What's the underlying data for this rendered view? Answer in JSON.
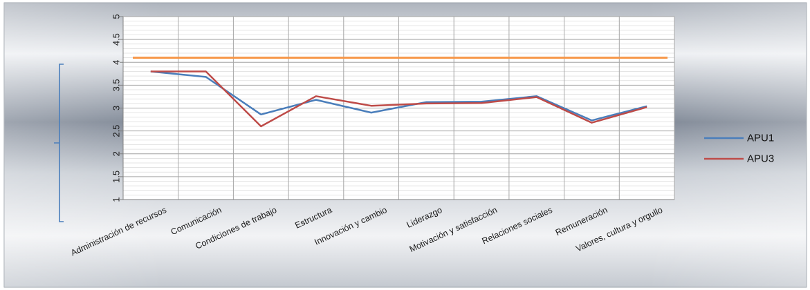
{
  "chart_data": {
    "type": "line",
    "title": "",
    "xlabel": "",
    "ylabel": "",
    "categories": [
      "Administración de recursos",
      "Comunicación",
      "Condiciones de trabajo",
      "Estructura",
      "Innovación y cambio",
      "Liderazgo",
      "Motivación y satisfacción",
      "Relaciones sociales",
      "Remuneración",
      "Valores, cultura y orgullo"
    ],
    "y_ticks": [
      "1",
      "1.5",
      "2",
      "2.5",
      "3",
      "3.5",
      "4",
      "4.5",
      "5"
    ],
    "ylim": [
      1,
      5
    ],
    "series": [
      {
        "name": "APU1",
        "color": "#4a7ebb",
        "values": [
          3.8,
          3.68,
          2.86,
          3.18,
          2.9,
          3.13,
          3.14,
          3.26,
          2.73,
          3.04
        ]
      },
      {
        "name": "APU3",
        "color": "#be4b48",
        "values": [
          3.8,
          3.8,
          2.6,
          3.26,
          3.05,
          3.1,
          3.11,
          3.24,
          2.68,
          3.02
        ]
      }
    ],
    "reference_line": {
      "value": 4.1,
      "color": "#f79646"
    },
    "grid": true,
    "legend_position": "right"
  }
}
